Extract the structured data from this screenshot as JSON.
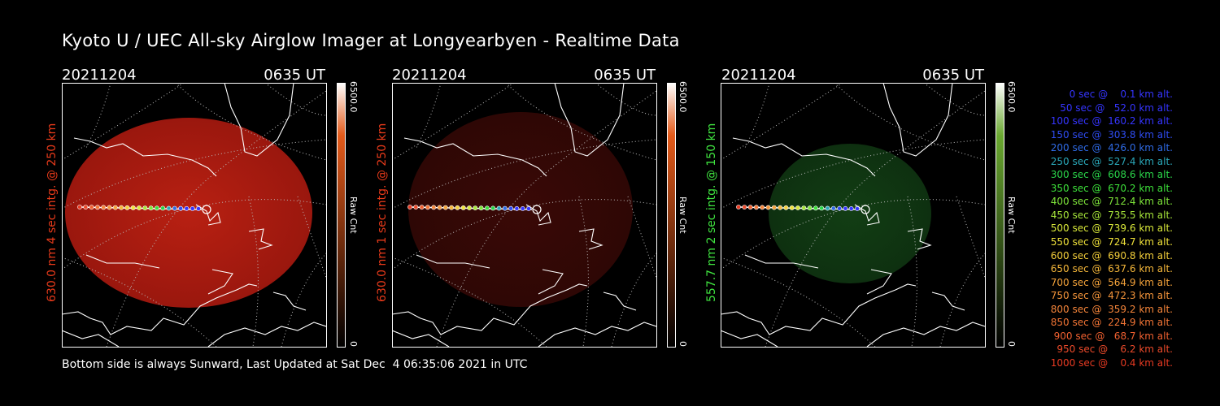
{
  "title": "Kyoto U / UEC All-sky Airglow Imager at Longyearbyen - Realtime Data",
  "footer": "Bottom side is always Sunward, Last Updated at Sat Dec  4 06:35:06 2021 in UTC",
  "panels": [
    {
      "date": "20211204",
      "time": "0635 UT",
      "side_label": "630.0 nm  4 sec intg. @ 250 km",
      "label_color": "#e83a1a",
      "cb_max": "6500.0",
      "cb_min": "0",
      "cb_unit": "Raw Cnt",
      "tint": "red",
      "intensity": "bright"
    },
    {
      "date": "20211204",
      "time": "0635 UT",
      "side_label": "630.0 nm  1 sec intg. @ 250 km",
      "label_color": "#e83a1a",
      "cb_max": "6500.0",
      "cb_min": "0",
      "cb_unit": "Raw Cnt",
      "tint": "red",
      "intensity": "dim"
    },
    {
      "date": "20211204",
      "time": "0635 UT",
      "side_label": "557.7 nm  2 sec intg. @ 150 km",
      "label_color": "#3fe33f",
      "cb_max": "6500.0",
      "cb_min": "0",
      "cb_unit": "Raw Cnt",
      "tint": "green",
      "intensity": "dim"
    }
  ],
  "legend": [
    {
      "text": "   0 sec @    0.1 km alt.",
      "color": "#3535ff"
    },
    {
      "text": "  50 sec @   52.0 km alt.",
      "color": "#3535ff"
    },
    {
      "text": " 100 sec @  160.2 km alt.",
      "color": "#3535ff"
    },
    {
      "text": " 150 sec @  303.8 km alt.",
      "color": "#2e4bf0"
    },
    {
      "text": " 200 sec @  426.0 km alt.",
      "color": "#2f6be6"
    },
    {
      "text": " 250 sec @  527.4 km alt.",
      "color": "#2aa7b8"
    },
    {
      "text": " 300 sec @  608.6 km alt.",
      "color": "#2ad64a"
    },
    {
      "text": " 350 sec @  670.2 km alt.",
      "color": "#3de03a"
    },
    {
      "text": " 400 sec @  712.4 km alt.",
      "color": "#7ee43a"
    },
    {
      "text": " 450 sec @  735.5 km alt.",
      "color": "#a7e63a"
    },
    {
      "text": " 500 sec @  739.6 km alt.",
      "color": "#d9e83a"
    },
    {
      "text": " 550 sec @  724.7 km alt.",
      "color": "#f0e23a"
    },
    {
      "text": " 600 sec @  690.8 km alt.",
      "color": "#f4cf3a"
    },
    {
      "text": " 650 sec @  637.6 km alt.",
      "color": "#f5b73a"
    },
    {
      "text": " 700 sec @  564.9 km alt.",
      "color": "#f5a33a"
    },
    {
      "text": " 750 sec @  472.3 km alt.",
      "color": "#f5953a"
    },
    {
      "text": " 800 sec @  359.2 km alt.",
      "color": "#f5853a"
    },
    {
      "text": " 850 sec @  224.9 km alt.",
      "color": "#f37535"
    },
    {
      "text": " 900 sec @   68.7 km alt.",
      "color": "#f06030"
    },
    {
      "text": " 950 sec @    6.2 km alt.",
      "color": "#ec4a2a"
    },
    {
      "text": "1000 sec @    0.4 km alt.",
      "color": "#e83a22"
    }
  ]
}
